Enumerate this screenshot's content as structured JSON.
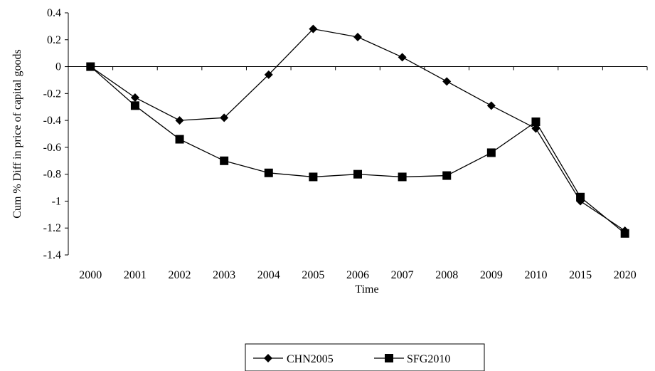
{
  "chart_data": {
    "type": "line",
    "title": "",
    "xlabel": "Time",
    "ylabel": "Cum % Diff in price of capital goods",
    "categories": [
      "2000",
      "2001",
      "2002",
      "2003",
      "2004",
      "2005",
      "2006",
      "2007",
      "2008",
      "2009",
      "2010",
      "2015",
      "2020"
    ],
    "ylim": [
      -1.4,
      0.4
    ],
    "yticks": [
      0.4,
      0.2,
      0,
      -0.2,
      -0.4,
      -0.6,
      -0.8,
      -1,
      -1.2,
      -1.4
    ],
    "ytick_labels": [
      "0.4",
      "0.2",
      "0",
      "-0.2",
      "-0.4",
      "-0.6",
      "-0.8",
      "-1",
      "-1.2",
      "-1.4"
    ],
    "grid": false,
    "legend_position": "bottom",
    "series": [
      {
        "name": "CHN2005",
        "marker": "diamond",
        "color": "#000000",
        "values": [
          0,
          -0.23,
          -0.4,
          -0.38,
          -0.06,
          0.28,
          0.22,
          0.07,
          -0.11,
          -0.29,
          -0.46,
          -1.0,
          -1.22
        ]
      },
      {
        "name": "SFG2010",
        "marker": "square",
        "color": "#000000",
        "values": [
          0,
          -0.29,
          -0.54,
          -0.7,
          -0.79,
          -0.82,
          -0.8,
          -0.82,
          -0.81,
          -0.64,
          -0.41,
          -0.97,
          -1.24
        ]
      }
    ]
  }
}
